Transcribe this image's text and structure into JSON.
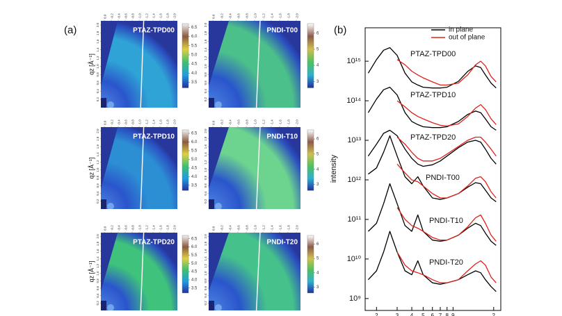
{
  "panel_a": {
    "label": "(a)",
    "ylabel": "qz [Å⁻¹]",
    "xlim": [
      0.1,
      -2.1
    ],
    "ylim": [
      0,
      2.1
    ],
    "top_ticks": [
      {
        "value": 0,
        "label": "0.0"
      },
      -0.2,
      -0.4,
      -0.6,
      -0.8,
      {
        "value": -1,
        "label": "-1.0"
      },
      -1.2,
      -1.4,
      -1.6,
      -1.8,
      {
        "value": -2,
        "label": "-2.0"
      }
    ],
    "left_ticks": [
      0.2,
      0.4,
      0.6,
      0.8,
      {
        "value": 1,
        "label": "1.0"
      },
      1.2,
      1.4,
      1.6,
      1.8,
      {
        "value": 2,
        "label": "2.0"
      }
    ],
    "images": [
      {
        "name": "PTAZ-TPD00",
        "clim": [
          3.2,
          6.7
        ],
        "cticks": [
          3.5,
          {
            "value": 4,
            "label": "4.0"
          },
          4.5,
          {
            "value": 5,
            "label": "5.0"
          },
          5.5,
          {
            "value": 6,
            "label": "6.0"
          },
          6.5
        ]
      },
      {
        "name": "PNDI-T00",
        "clim": [
          2.6,
          6.6
        ],
        "cticks": [
          3,
          4,
          5,
          6
        ]
      },
      {
        "name": "PTAZ-TPD10",
        "clim": [
          3.2,
          6.7
        ],
        "cticks": [
          3.5,
          {
            "value": 4,
            "label": "4.0"
          },
          4.5,
          {
            "value": 5,
            "label": "5.0"
          },
          5.5,
          {
            "value": 6,
            "label": "6.0"
          },
          6.5
        ]
      },
      {
        "name": "PNDI-T10",
        "clim": [
          2.6,
          6.6
        ],
        "cticks": [
          3,
          4,
          5,
          6
        ]
      },
      {
        "name": "PTAZ-TPD20",
        "clim": [
          3.2,
          6.7
        ],
        "cticks": [
          3.5,
          {
            "value": 4,
            "label": "4.0"
          },
          4.5,
          {
            "value": 5,
            "label": "5.0"
          },
          5.5,
          {
            "value": 6,
            "label": "6.0"
          },
          6.5
        ]
      },
      {
        "name": "PNDI-T20",
        "clim": [
          2.6,
          6.6
        ],
        "cticks": [
          3,
          4,
          5,
          6
        ]
      }
    ]
  },
  "chart_data": {
    "type": "line",
    "label": "(b)",
    "ylabel": "intensity",
    "log_x": true,
    "log_y": true,
    "xlim": [
      0.16,
      2.3
    ],
    "ylim": [
      500000000.0,
      7000000000000000.0
    ],
    "xticks": [
      {
        "value": 0.2,
        "label": "2"
      },
      {
        "value": 0.3,
        "label": "3"
      },
      {
        "value": 0.4,
        "label": "4"
      },
      {
        "value": 0.5,
        "label": "5"
      },
      {
        "value": 0.6,
        "label": "6"
      },
      {
        "value": 0.7,
        "label": "7"
      },
      {
        "value": 0.8,
        "label": "8"
      },
      {
        "value": 0.9,
        "label": "9"
      },
      {
        "value": 2,
        "label": "2"
      }
    ],
    "yticks": [
      {
        "value": 1000000000.0,
        "label": "10⁹"
      },
      {
        "value": 10000000000.0,
        "label": "10¹⁰"
      },
      {
        "value": 100000000000.0,
        "label": "10¹¹"
      },
      {
        "value": 1000000000000.0,
        "label": "10¹²"
      },
      {
        "value": 10000000000000.0,
        "label": "10¹³"
      },
      {
        "value": 100000000000000.0,
        "label": "10¹⁴"
      },
      {
        "value": 1000000000000000.0,
        "label": "10¹⁵"
      }
    ],
    "legend": "top-right",
    "series": [
      {
        "name": "in plane",
        "color": "#000000"
      },
      {
        "name": "out of plane",
        "color": "#e0201b"
      }
    ],
    "x": [
      0.17,
      0.2,
      0.23,
      0.26,
      0.3,
      0.35,
      0.4,
      0.45,
      0.5,
      0.6,
      0.7,
      0.8,
      1.0,
      1.2,
      1.4,
      1.55,
      1.7,
      1.9,
      2.1
    ],
    "samples": [
      {
        "label": "PTAZ-TPD00",
        "values": [
          [
            500000000000000.0,
            1100000000000000.0,
            1900000000000000.0,
            2200000000000000.0,
            1400000000000000.0,
            500000000000000.0,
            300000000000000.0,
            250000000000000.0,
            220000000000000.0,
            210000000000000.0,
            210000000000000.0,
            220000000000000.0,
            310000000000000.0,
            550000000000000.0,
            760000000000000.0,
            690000000000000.0,
            450000000000000.0,
            280000000000000.0,
            210000000000000.0
          ],
          [
            null,
            null,
            null,
            null,
            1100000000000000.0,
            810000000000000.0,
            560000000000000.0,
            450000000000000.0,
            380000000000000.0,
            300000000000000.0,
            250000000000000.0,
            250000000000000.0,
            280000000000000.0,
            450000000000000.0,
            810000000000000.0,
            1000000000000000.0,
            760000000000000.0,
            410000000000000.0,
            300000000000000.0
          ]
        ]
      },
      {
        "label": "PTAZ-TPD10",
        "values": [
          [
            50000000000000.0,
            110000000000000.0,
            190000000000000.0,
            220000000000000.0,
            140000000000000.0,
            50000000000000.0,
            30000000000000.0,
            25000000000000.0,
            22000000000000.0,
            21000000000000.0,
            21000000000000.0,
            22000000000000.0,
            30000000000000.0,
            45000000000000.0,
            55000000000000.0,
            50000000000000.0,
            35000000000000.0,
            22000000000000.0,
            18000000000000.0
          ],
          [
            null,
            null,
            null,
            null,
            100000000000000.0,
            70000000000000.0,
            50000000000000.0,
            40000000000000.0,
            35000000000000.0,
            28000000000000.0,
            24000000000000.0,
            23000000000000.0,
            26000000000000.0,
            40000000000000.0,
            65000000000000.0,
            80000000000000.0,
            60000000000000.0,
            35000000000000.0,
            25000000000000.0
          ]
        ]
      },
      {
        "label": "PTAZ-TPD20",
        "values": [
          [
            4000000000000.0,
            8000000000000.0,
            15000000000000.0,
            18000000000000.0,
            13000000000000.0,
            6000000000000.0,
            3500000000000.0,
            2500000000000.0,
            2200000000000.0,
            2400000000000.0,
            3000000000000.0,
            4000000000000.0,
            6500000000000.0,
            9000000000000.0,
            10000000000000.0,
            9000000000000.0,
            6000000000000.0,
            3500000000000.0,
            2500000000000.0
          ],
          [
            null,
            null,
            null,
            null,
            12000000000000.0,
            8000000000000.0,
            5000000000000.0,
            3500000000000.0,
            3000000000000.0,
            3000000000000.0,
            3500000000000.0,
            4500000000000.0,
            7000000000000.0,
            10000000000000.0,
            12000000000000.0,
            12000000000000.0,
            9000000000000.0,
            6000000000000.0,
            4000000000000.0
          ]
        ]
      },
      {
        "label": "PNDI-T00",
        "values": [
          [
            1400000000000.0,
            2000000000000.0,
            5000000000000.0,
            13000000000000.0,
            4000000000000.0,
            1200000000000.0,
            800000000000.0,
            1200000000000.0,
            700000000000.0,
            350000000000.0,
            320000000000.0,
            350000000000.0,
            450000000000.0,
            650000000000.0,
            850000000000.0,
            800000000000.0,
            550000000000.0,
            350000000000.0,
            280000000000.0
          ],
          [
            null,
            null,
            null,
            null,
            2500000000000.0,
            1500000000000.0,
            1000000000000.0,
            900000000000.0,
            700000000000.0,
            450000000000.0,
            350000000000.0,
            350000000000.0,
            450000000000.0,
            700000000000.0,
            1100000000000.0,
            1200000000000.0,
            900000000000.0,
            500000000000.0,
            350000000000.0
          ]
        ]
      },
      {
        "label": "PNDI-T10",
        "values": [
          [
            50000000000.0,
            80000000000.0,
            250000000000.0,
            800000000000.0,
            250000000000.0,
            70000000000.0,
            50000000000.0,
            130000000000.0,
            50000000000.0,
            30000000000.0,
            28000000000.0,
            30000000000.0,
            40000000000.0,
            60000000000.0,
            80000000000.0,
            70000000000.0,
            45000000000.0,
            28000000000.0,
            22000000000.0
          ],
          [
            null,
            null,
            null,
            null,
            200000000000.0,
            100000000000.0,
            70000000000.0,
            60000000000.0,
            50000000000.0,
            35000000000.0,
            30000000000.0,
            30000000000.0,
            40000000000.0,
            65000000000.0,
            110000000000.0,
            130000000000.0,
            80000000000.0,
            40000000000.0,
            28000000000.0
          ]
        ]
      },
      {
        "label": "PNDI-T20",
        "values": [
          [
            3000000000.0,
            5000000000.0,
            15000000000.0,
            50000000000.0,
            15000000000.0,
            5000000000.0,
            4000000000.0,
            9000000000.0,
            4000000000.0,
            2500000000.0,
            2300000000.0,
            2500000000.0,
            3000000000.0,
            4000000000.0,
            5000000000.0,
            4500000000.0,
            3000000000.0,
            2000000000.0,
            1500000000.0
          ],
          [
            null,
            null,
            null,
            null,
            15000000000.0,
            7000000000.0,
            5000000000.0,
            4500000000.0,
            4000000000.0,
            3000000000.0,
            2500000000.0,
            2500000000.0,
            3000000000.0,
            5000000000.0,
            7500000000.0,
            9000000000.0,
            7000000000.0,
            3500000000.0,
            2500000000.0
          ]
        ]
      }
    ]
  }
}
